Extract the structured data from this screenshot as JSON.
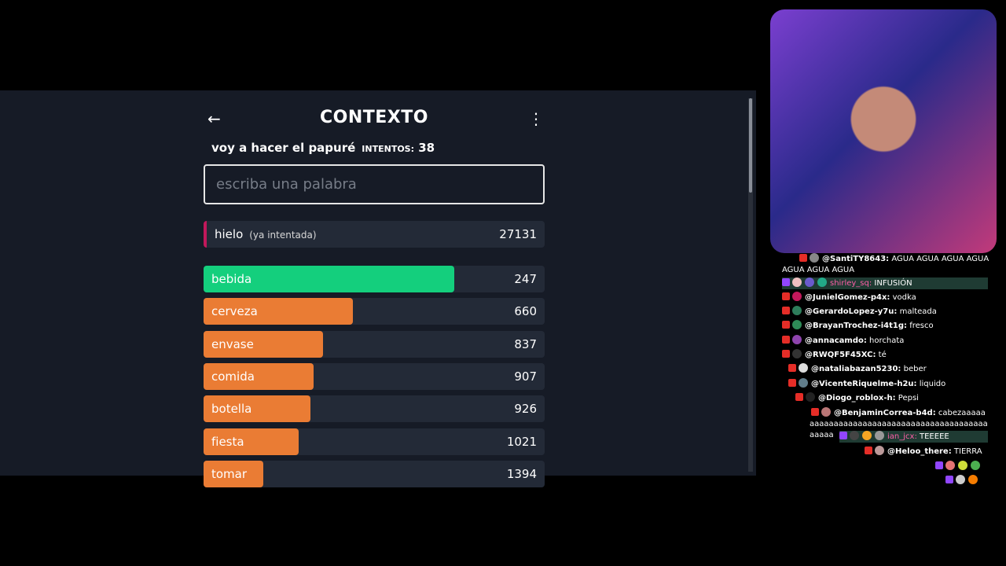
{
  "game": {
    "title": "CONTEXTO",
    "subtitle": "voy a hacer el papuré",
    "attempts_label": "INTENTOS:",
    "attempts": 38,
    "input_placeholder": "escriba una palabra",
    "last_guess": {
      "word": "hielo",
      "note": "(ya intentada)",
      "rank": 27131
    },
    "guesses": [
      {
        "word": "bebida",
        "rank": 247,
        "color": "#14cf7d"
      },
      {
        "word": "cerveza",
        "rank": 660,
        "color": "#ea7c34"
      },
      {
        "word": "envase",
        "rank": 837,
        "color": "#ea7c34"
      },
      {
        "word": "comida",
        "rank": 907,
        "color": "#ea7c34"
      },
      {
        "word": "botella",
        "rank": 926,
        "color": "#ea7c34"
      },
      {
        "word": "fiesta",
        "rank": 1021,
        "color": "#ea7c34"
      },
      {
        "word": "tomar",
        "rank": 1394,
        "color": "#ea7c34"
      }
    ]
  },
  "chat": [
    {
      "user": "@SantiTY8643:",
      "text": "AGUA AGUA AGUA AGUA AGUA AGUA AGUA"
    },
    {
      "user": "shirley_sq:",
      "text": "INFUSIÓN"
    },
    {
      "user": "@JunielGomez-p4x:",
      "text": "vodka"
    },
    {
      "user": "@GerardoLopez-y7u:",
      "text": "malteada"
    },
    {
      "user": "@BrayanTrochez-i4t1g:",
      "text": "fresco"
    },
    {
      "user": "@annacamdo:",
      "text": "horchata"
    },
    {
      "user": "@RWQF5F45XC:",
      "text": "té"
    },
    {
      "user": "@nataliabazan5230:",
      "text": "beber"
    },
    {
      "user": "@VicenteRiquelme-h2u:",
      "text": "liquido"
    },
    {
      "user": "@Diogo_roblox-h:",
      "text": "Pepsi"
    },
    {
      "user": "@BenjaminCorrea-b4d:",
      "text": "cabezaaaaaaaaaaaaaaaaaaaaaaaaaaaaaaaaaaaaaaaaaaaaaaa"
    },
    {
      "user": "ian_jcx:",
      "text": "TEEEEE"
    },
    {
      "user": "@Heloo_there:",
      "text": "TIERRA"
    }
  ]
}
